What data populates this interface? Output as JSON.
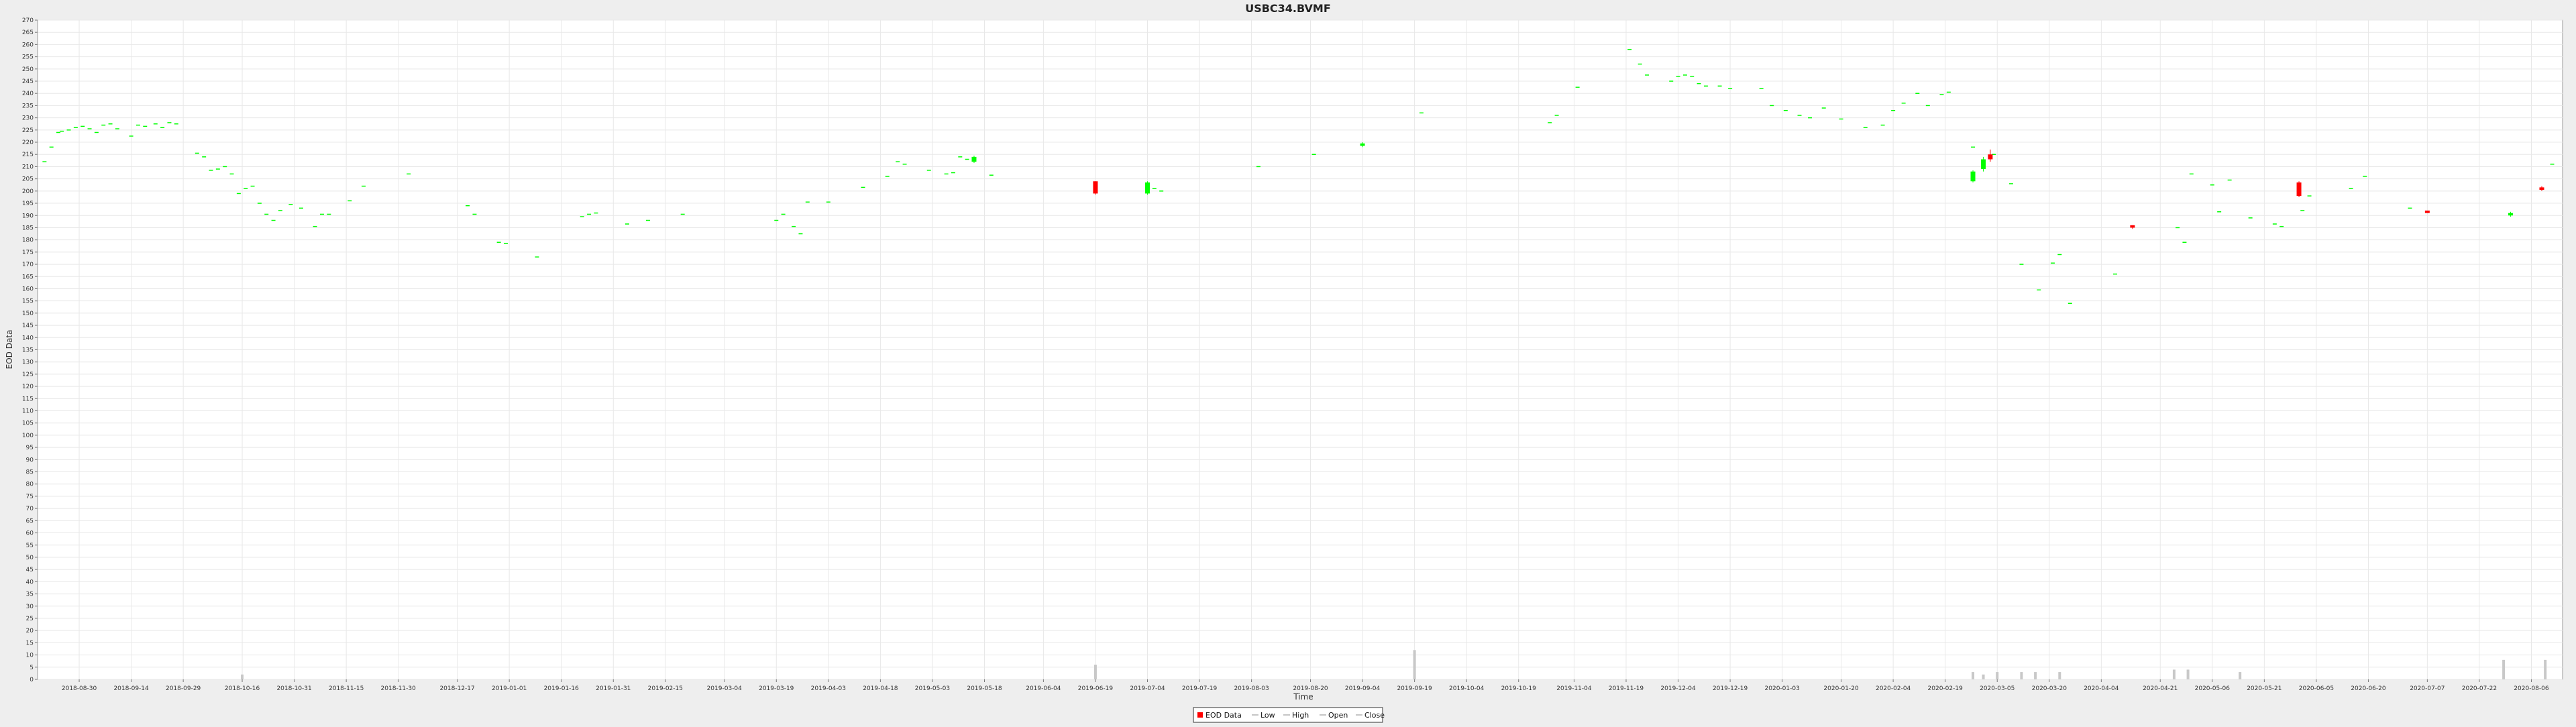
{
  "chart_data": {
    "type": "candlestick",
    "title": "USBC34.BVMF",
    "xlabel": "Time",
    "ylabel": "EOD Data",
    "ylim": [
      0,
      270
    ],
    "ytick_step": 5,
    "grid": true,
    "legend_placement": "bottom-center",
    "legend": [
      {
        "label": "EOD Data",
        "marker": "box",
        "color": "#ff0000"
      },
      {
        "label": "Low",
        "marker": "line",
        "color": "#8c8c8c"
      },
      {
        "label": "High",
        "marker": "line",
        "color": "#8c8c8c"
      },
      {
        "label": "Open",
        "marker": "line",
        "color": "#8c8c8c"
      },
      {
        "label": "Close",
        "marker": "line",
        "color": "#8c8c8c"
      }
    ],
    "colors": {
      "up": "#00ff00",
      "down": "#ff0000",
      "volume": "#c8c8c8",
      "grid": "#e8e8e8",
      "plot_bg": "#ffffff"
    },
    "x_range": [
      "2018-08-18",
      "2020-08-15"
    ],
    "x_ticks": [
      "2018-08-30",
      "2018-09-14",
      "2018-09-29",
      "2018-10-16",
      "2018-10-31",
      "2018-11-15",
      "2018-11-30",
      "2018-12-17",
      "2019-01-01",
      "2019-01-16",
      "2019-01-31",
      "2019-02-15",
      "2019-03-04",
      "2019-03-19",
      "2019-04-03",
      "2019-04-18",
      "2019-05-03",
      "2019-05-18",
      "2019-06-04",
      "2019-06-19",
      "2019-07-04",
      "2019-07-19",
      "2019-08-03",
      "2019-08-20",
      "2019-09-04",
      "2019-09-19",
      "2019-10-04",
      "2019-10-19",
      "2019-11-04",
      "2019-11-19",
      "2019-12-04",
      "2019-12-19",
      "2020-01-03",
      "2020-01-20",
      "2020-02-04",
      "2020-02-19",
      "2020-03-05",
      "2020-03-20",
      "2020-04-04",
      "2020-04-21",
      "2020-05-06",
      "2020-05-21",
      "2020-06-05",
      "2020-06-20",
      "2020-07-07",
      "2020-07-22",
      "2020-08-06"
    ],
    "points": [
      {
        "date": "2018-08-20",
        "value": 212
      },
      {
        "date": "2018-08-22",
        "value": 218
      },
      {
        "date": "2018-08-24",
        "value": 224
      },
      {
        "date": "2018-08-25",
        "value": 224.5
      },
      {
        "date": "2018-08-27",
        "value": 225
      },
      {
        "date": "2018-08-29",
        "value": 226
      },
      {
        "date": "2018-08-31",
        "value": 226.5
      },
      {
        "date": "2018-09-02",
        "value": 225.5
      },
      {
        "date": "2018-09-04",
        "value": 224
      },
      {
        "date": "2018-09-06",
        "value": 227
      },
      {
        "date": "2018-09-08",
        "value": 227.5
      },
      {
        "date": "2018-09-10",
        "value": 225.5
      },
      {
        "date": "2018-09-14",
        "value": 222.5
      },
      {
        "date": "2018-09-16",
        "value": 227
      },
      {
        "date": "2018-09-18",
        "value": 226.5
      },
      {
        "date": "2018-09-21",
        "value": 227.5
      },
      {
        "date": "2018-09-23",
        "value": 226
      },
      {
        "date": "2018-09-25",
        "value": 228
      },
      {
        "date": "2018-09-27",
        "value": 227.5
      },
      {
        "date": "2018-10-03",
        "value": 215.5
      },
      {
        "date": "2018-10-05",
        "value": 214
      },
      {
        "date": "2018-10-07",
        "value": 208.5
      },
      {
        "date": "2018-10-09",
        "value": 209
      },
      {
        "date": "2018-10-11",
        "value": 210
      },
      {
        "date": "2018-10-13",
        "value": 207
      },
      {
        "date": "2018-10-15",
        "value": 199
      },
      {
        "date": "2018-10-17",
        "value": 201
      },
      {
        "date": "2018-10-19",
        "value": 202
      },
      {
        "date": "2018-10-21",
        "value": 195
      },
      {
        "date": "2018-10-23",
        "value": 190.5
      },
      {
        "date": "2018-10-25",
        "value": 188
      },
      {
        "date": "2018-10-27",
        "value": 192
      },
      {
        "date": "2018-10-30",
        "value": 194.5
      },
      {
        "date": "2018-11-02",
        "value": 193
      },
      {
        "date": "2018-11-06",
        "value": 185.5
      },
      {
        "date": "2018-11-08",
        "value": 190.5
      },
      {
        "date": "2018-11-10",
        "value": 190.5
      },
      {
        "date": "2018-11-16",
        "value": 196
      },
      {
        "date": "2018-11-20",
        "value": 202
      },
      {
        "date": "2018-12-03",
        "value": 207
      },
      {
        "date": "2018-12-20",
        "value": 194
      },
      {
        "date": "2018-12-22",
        "value": 190.5
      },
      {
        "date": "2018-12-29",
        "value": 179
      },
      {
        "date": "2018-12-31",
        "value": 178.5
      },
      {
        "date": "2019-01-09",
        "value": 173
      },
      {
        "date": "2019-01-22",
        "value": 189.5
      },
      {
        "date": "2019-01-24",
        "value": 190.5
      },
      {
        "date": "2019-01-26",
        "value": 191
      },
      {
        "date": "2019-02-04",
        "value": 186.5
      },
      {
        "date": "2019-02-10",
        "value": 188
      },
      {
        "date": "2019-02-20",
        "value": 190.5
      },
      {
        "date": "2019-03-19",
        "value": 188
      },
      {
        "date": "2019-03-21",
        "value": 190.5
      },
      {
        "date": "2019-03-24",
        "value": 185.5
      },
      {
        "date": "2019-03-26",
        "value": 182.5
      },
      {
        "date": "2019-03-28",
        "value": 195.5
      },
      {
        "date": "2019-04-03",
        "value": 195.5
      },
      {
        "date": "2019-04-13",
        "value": 201.5
      },
      {
        "date": "2019-04-20",
        "value": 206
      },
      {
        "date": "2019-04-23",
        "value": 212
      },
      {
        "date": "2019-04-25",
        "value": 211
      },
      {
        "date": "2019-05-02",
        "value": 208.5
      },
      {
        "date": "2019-05-07",
        "value": 207
      },
      {
        "date": "2019-05-09",
        "value": 207.5
      },
      {
        "date": "2019-05-11",
        "value": 214
      },
      {
        "date": "2019-05-13",
        "value": 213
      },
      {
        "date": "2019-05-20",
        "value": 206.5
      }
    ],
    "candles": [
      {
        "date": "2019-06-19",
        "open": 199,
        "close": 203,
        "high": 203.5,
        "low": 199
      },
      {
        "date": "2019-07-04",
        "open": 199,
        "close": 204,
        "high": 204.5,
        "low": 198.5
      },
      {
        "date": "2020-03-01",
        "open": 209,
        "close": 216,
        "high": 217,
        "low": 207
      }
    ],
    "points_2": [
      {
        "date": "2019-07-06",
        "value": 201
      },
      {
        "date": "2019-07-08",
        "value": 200
      },
      {
        "date": "2019-08-05",
        "value": 210
      },
      {
        "date": "2019-08-21",
        "value": 215
      },
      {
        "date": "2019-09-04",
        "value": 219
      },
      {
        "date": "2019-09-21",
        "value": 232
      },
      {
        "date": "2019-10-28",
        "value": 228
      },
      {
        "date": "2019-10-30",
        "value": 231
      },
      {
        "date": "2019-11-05",
        "value": 242.5
      },
      {
        "date": "2019-11-20",
        "value": 258
      },
      {
        "date": "2019-11-23",
        "value": 252
      },
      {
        "date": "2019-11-25",
        "value": 247.5
      },
      {
        "date": "2019-12-02",
        "value": 245
      },
      {
        "date": "2019-12-04",
        "value": 247
      },
      {
        "date": "2019-12-06",
        "value": 247.5
      },
      {
        "date": "2019-12-08",
        "value": 247
      },
      {
        "date": "2019-12-10",
        "value": 244
      },
      {
        "date": "2019-12-12",
        "value": 243
      },
      {
        "date": "2019-12-16",
        "value": 243
      },
      {
        "date": "2019-12-19",
        "value": 242
      },
      {
        "date": "2019-12-28",
        "value": 242
      },
      {
        "date": "2019-12-31",
        "value": 235
      },
      {
        "date": "2020-01-04",
        "value": 233
      },
      {
        "date": "2020-01-08",
        "value": 231
      },
      {
        "date": "2020-01-11",
        "value": 230
      },
      {
        "date": "2020-01-15",
        "value": 234
      },
      {
        "date": "2020-01-20",
        "value": 229.5
      },
      {
        "date": "2020-01-27",
        "value": 226
      },
      {
        "date": "2020-02-01",
        "value": 227
      },
      {
        "date": "2020-02-04",
        "value": 233
      },
      {
        "date": "2020-02-07",
        "value": 236
      },
      {
        "date": "2020-02-11",
        "value": 240
      },
      {
        "date": "2020-02-14",
        "value": 235
      },
      {
        "date": "2020-02-18",
        "value": 239.5
      },
      {
        "date": "2020-02-20",
        "value": 240.5
      },
      {
        "date": "2020-02-27",
        "value": 218
      },
      {
        "date": "2020-03-04",
        "value": 215
      },
      {
        "date": "2020-03-09",
        "value": 203
      },
      {
        "date": "2020-03-12",
        "value": 170
      },
      {
        "date": "2020-03-17",
        "value": 159.5
      },
      {
        "date": "2020-03-21",
        "value": 170.5
      },
      {
        "date": "2020-03-23",
        "value": 174
      },
      {
        "date": "2020-03-26",
        "value": 154
      },
      {
        "date": "2020-04-08",
        "value": 166
      },
      {
        "date": "2020-04-26",
        "value": 185
      },
      {
        "date": "2020-04-28",
        "value": 179
      },
      {
        "date": "2020-04-30",
        "value": 207
      },
      {
        "date": "2020-05-06",
        "value": 202.5
      },
      {
        "date": "2020-05-08",
        "value": 191.5
      },
      {
        "date": "2020-05-11",
        "value": 204.5
      },
      {
        "date": "2020-05-17",
        "value": 189
      },
      {
        "date": "2020-05-24",
        "value": 186.5
      },
      {
        "date": "2020-05-26",
        "value": 185.5
      },
      {
        "date": "2020-06-03",
        "value": 198
      },
      {
        "date": "2020-06-15",
        "value": 201
      },
      {
        "date": "2020-06-19",
        "value": 206
      },
      {
        "date": "2020-07-02",
        "value": 193
      },
      {
        "date": "2020-07-31",
        "value": 190.5
      },
      {
        "date": "2020-08-12",
        "value": 211
      },
      {
        "date": "2020-06-01",
        "value": 192
      }
    ],
    "down_candles": [
      {
        "date": "2019-06-19",
        "open": 204,
        "close": 199,
        "high": 204,
        "low": 198.5
      },
      {
        "date": "2020-03-03",
        "open": 215,
        "close": 213,
        "high": 217,
        "low": 212
      },
      {
        "date": "2020-04-13",
        "open": 186,
        "close": 185,
        "high": 186,
        "low": 184.5
      },
      {
        "date": "2020-05-31",
        "open": 203.5,
        "close": 198,
        "high": 204,
        "low": 197.5
      },
      {
        "date": "2020-07-07",
        "open": 192,
        "close": 191,
        "high": 192,
        "low": 191
      },
      {
        "date": "2020-08-09",
        "open": 201.5,
        "close": 200.5,
        "high": 202,
        "low": 200
      }
    ],
    "up_candles": [
      {
        "date": "2019-05-15",
        "open": 212,
        "close": 214,
        "high": 214.5,
        "low": 211.5
      },
      {
        "date": "2019-07-04",
        "open": 199,
        "close": 203.5,
        "high": 204,
        "low": 198.5
      },
      {
        "date": "2019-09-04",
        "open": 218.5,
        "close": 219.5,
        "high": 220,
        "low": 218
      },
      {
        "date": "2020-02-27",
        "open": 204,
        "close": 208,
        "high": 208.5,
        "low": 203.5
      },
      {
        "date": "2020-03-01",
        "open": 209,
        "close": 213,
        "high": 214,
        "low": 208
      },
      {
        "date": "2020-07-31",
        "open": 190,
        "close": 191,
        "high": 191.5,
        "low": 189.5
      }
    ],
    "volume": [
      {
        "date": "2018-10-16",
        "value": 2
      },
      {
        "date": "2019-06-19",
        "value": 6
      },
      {
        "date": "2019-09-19",
        "value": 12
      },
      {
        "date": "2020-02-27",
        "value": 3
      },
      {
        "date": "2020-03-01",
        "value": 2
      },
      {
        "date": "2020-03-05",
        "value": 3
      },
      {
        "date": "2020-03-12",
        "value": 3
      },
      {
        "date": "2020-03-16",
        "value": 3
      },
      {
        "date": "2020-03-23",
        "value": 3
      },
      {
        "date": "2020-04-25",
        "value": 4
      },
      {
        "date": "2020-04-29",
        "value": 4
      },
      {
        "date": "2020-05-14",
        "value": 3
      },
      {
        "date": "2020-07-29",
        "value": 8
      },
      {
        "date": "2020-08-10",
        "value": 8
      }
    ]
  }
}
